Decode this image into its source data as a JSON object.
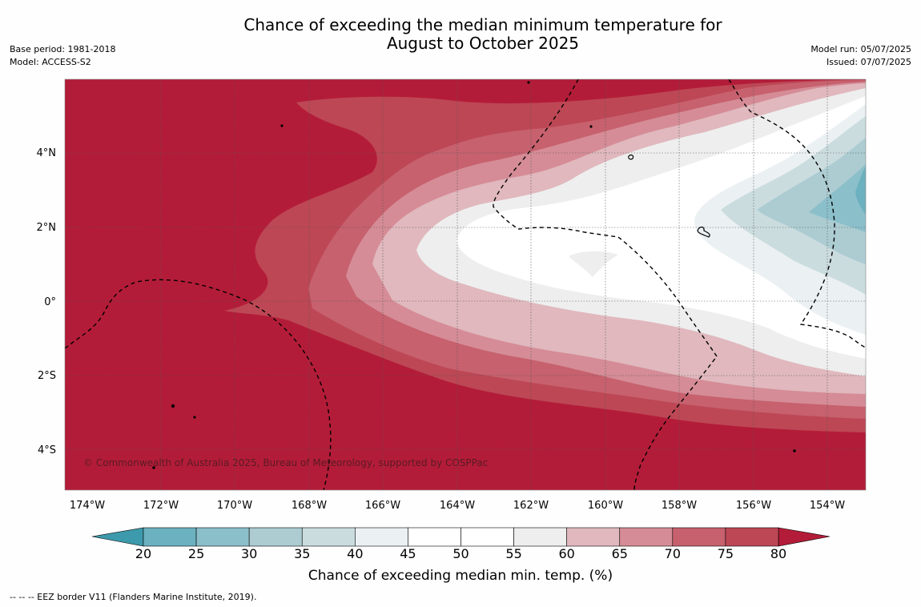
{
  "title": {
    "line1": "Chance of exceeding the median minimum temperature for",
    "line2": "August to October 2025"
  },
  "meta": {
    "base_period": "Base period: 1981-2018",
    "model": "Model: ACCESS-S2",
    "model_run": "Model run: 05/07/2025",
    "issued": "Issued: 07/07/2025"
  },
  "map": {
    "lon_labels": [
      "174°W",
      "172°W",
      "170°W",
      "168°W",
      "166°W",
      "164°W",
      "162°W",
      "160°W",
      "158°W",
      "156°W",
      "154°W"
    ],
    "lat_labels": [
      "4°N",
      "2°N",
      "0°",
      "2°S",
      "4°S"
    ],
    "copyright": "© Commonwealth of Australia 2025, Bureau of Meteorology, supported by COSPPac"
  },
  "colorbar": {
    "ticks": [
      "20",
      "25",
      "30",
      "35",
      "40",
      "45",
      "50",
      "55",
      "60",
      "65",
      "70",
      "75",
      "80"
    ],
    "colors": [
      "#3d9aac",
      "#6bb1bf",
      "#8bbfca",
      "#acccd2",
      "#cbdcdf",
      "#ebf1f3",
      "#ffffff",
      "#ffffff",
      "#eeeeee",
      "#e0b8be",
      "#d58c96",
      "#c7616e",
      "#bd4755",
      "#b31c38"
    ],
    "title": "Chance of exceeding median min. temp. (%)"
  },
  "footer": {
    "eez_note": "--  --  -- EEZ border V11 (Flanders Marine Institute, 2019)."
  }
}
